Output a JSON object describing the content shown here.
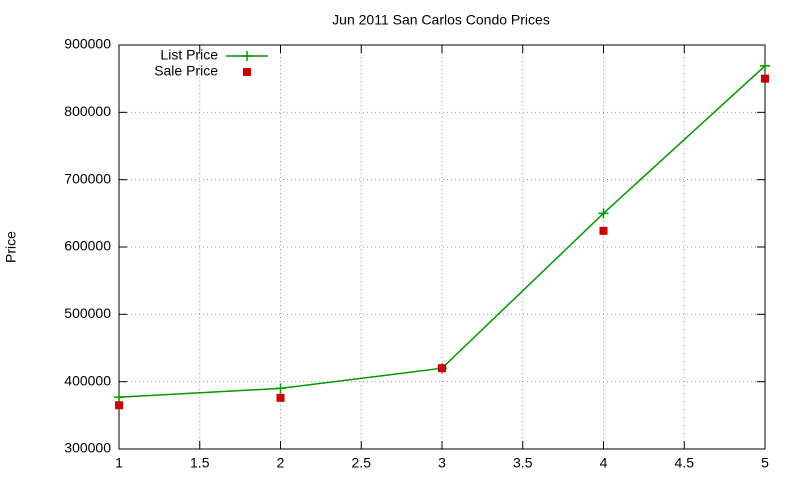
{
  "chart_data": {
    "type": "line",
    "title": "Jun 2011 San Carlos Condo Prices",
    "y_label": "Price",
    "x": [
      1,
      2,
      3,
      4,
      5
    ],
    "series": [
      {
        "name": "List Price",
        "color": "#009900",
        "style": "linespoints",
        "values": [
          377000,
          390000,
          420000,
          650000,
          869000
        ]
      },
      {
        "name": "Sale Price",
        "color": "#cc0000",
        "style": "points",
        "values": [
          365000,
          376000,
          420000,
          624000,
          850000
        ]
      }
    ],
    "xlim": [
      1,
      5
    ],
    "xticks": [
      1,
      1.5,
      2,
      2.5,
      3,
      3.5,
      4,
      4.5,
      5
    ],
    "ylim": [
      300000,
      900000
    ],
    "yticks": [
      300000,
      400000,
      500000,
      600000,
      700000,
      800000,
      900000
    ],
    "grid": true,
    "legend": "top-left"
  }
}
